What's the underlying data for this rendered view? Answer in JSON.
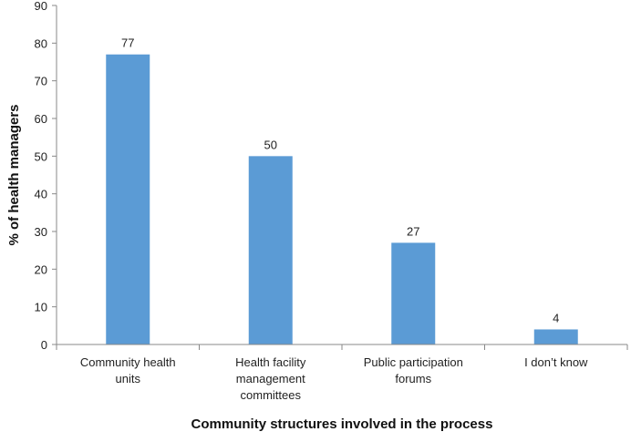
{
  "chart_data": {
    "type": "bar",
    "categories": [
      [
        "Community health",
        "units"
      ],
      [
        "Health facility",
        "management",
        "committees"
      ],
      [
        "Public participation",
        "forums"
      ],
      [
        "I don’t know"
      ]
    ],
    "values": [
      77,
      50,
      27,
      4
    ],
    "data_labels": [
      "77",
      "50",
      "27",
      "4"
    ],
    "xlabel": "Community structures involved in the process",
    "ylabel": "% of health managers",
    "ylim": [
      0,
      90
    ],
    "yticks": [
      0,
      10,
      20,
      30,
      40,
      50,
      60,
      70,
      80,
      90
    ],
    "bar_color": "#5b9bd5",
    "grid": false,
    "legend": "none"
  }
}
